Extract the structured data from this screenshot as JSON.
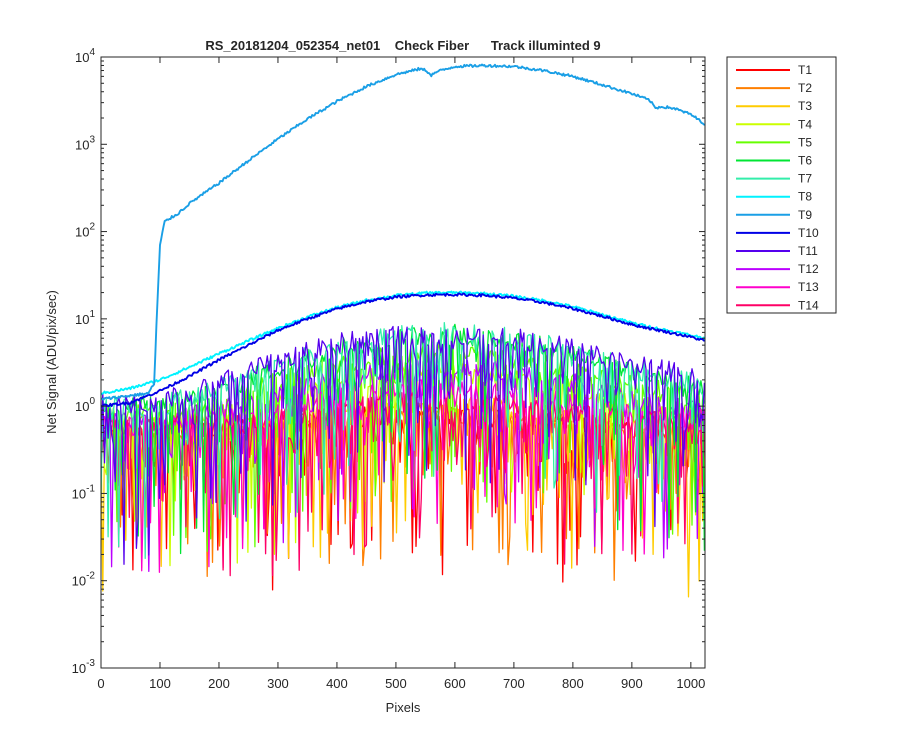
{
  "chart_data": {
    "type": "line",
    "title": "RS_20181204_052354_net01    Check Fiber      Track illuminted 9",
    "xlabel": "Pixels",
    "ylabel": "Net Signal (ADU/pix/sec)",
    "xlim": [
      0,
      1024
    ],
    "ylim": [
      0.001,
      10000
    ],
    "yscale": "log",
    "grid": false,
    "legend_position": "outside-top-right",
    "xticks": [
      0,
      100,
      200,
      300,
      400,
      500,
      600,
      700,
      800,
      900,
      1000
    ],
    "xtick_labels": [
      "0",
      "100",
      "200",
      "300",
      "400",
      "500",
      "600",
      "700",
      "800",
      "900",
      "1000"
    ],
    "yticks": [
      0.001,
      0.01,
      0.1,
      1,
      10,
      100,
      1000,
      10000
    ],
    "ytick_labels": [
      {
        "base": "10",
        "exp": "-3"
      },
      {
        "base": "10",
        "exp": "-2"
      },
      {
        "base": "10",
        "exp": "-1"
      },
      {
        "base": "10",
        "exp": "0"
      },
      {
        "base": "10",
        "exp": "1"
      },
      {
        "base": "10",
        "exp": "2"
      },
      {
        "base": "10",
        "exp": "3"
      },
      {
        "base": "10",
        "exp": "4"
      }
    ],
    "series": [
      {
        "name": "T1",
        "color": "#ff0000",
        "noisy": true,
        "x": [
          0,
          100,
          200,
          300,
          400,
          500,
          600,
          700,
          800,
          900,
          1024
        ],
        "y": [
          0.5,
          0.5,
          0.5,
          0.6,
          0.7,
          0.8,
          0.8,
          0.7,
          0.6,
          0.5,
          0.45
        ]
      },
      {
        "name": "T2",
        "color": "#ff7f00",
        "noisy": true,
        "x": [
          0,
          100,
          200,
          300,
          400,
          500,
          600,
          700,
          800,
          900,
          1024
        ],
        "y": [
          0.5,
          0.5,
          0.55,
          0.6,
          0.75,
          0.85,
          0.85,
          0.75,
          0.6,
          0.5,
          0.5
        ]
      },
      {
        "name": "T3",
        "color": "#ffcc00",
        "noisy": true,
        "x": [
          0,
          100,
          200,
          300,
          400,
          500,
          600,
          700,
          800,
          900,
          1024
        ],
        "y": [
          0.5,
          0.55,
          0.6,
          0.7,
          0.85,
          1.0,
          1.0,
          0.9,
          0.7,
          0.6,
          0.5
        ]
      },
      {
        "name": "T4",
        "color": "#ccff00",
        "noisy": true,
        "x": [
          0,
          100,
          200,
          300,
          400,
          500,
          600,
          700,
          800,
          900,
          1024
        ],
        "y": [
          0.6,
          0.6,
          0.8,
          1.2,
          1.8,
          2.3,
          2.4,
          2.1,
          1.6,
          1.1,
          0.8
        ]
      },
      {
        "name": "T5",
        "color": "#66ff00",
        "noisy": true,
        "x": [
          0,
          100,
          200,
          300,
          400,
          500,
          600,
          700,
          800,
          900,
          1024
        ],
        "y": [
          0.8,
          0.8,
          1.1,
          1.9,
          3.0,
          3.9,
          4.0,
          3.5,
          2.6,
          1.7,
          1.2
        ]
      },
      {
        "name": "T6",
        "color": "#00e633",
        "noisy": true,
        "x": [
          0,
          100,
          200,
          300,
          400,
          500,
          600,
          700,
          800,
          900,
          1024
        ],
        "y": [
          1.0,
          1.0,
          1.5,
          2.7,
          4.5,
          6.0,
          6.6,
          5.6,
          4.0,
          2.5,
          1.6
        ]
      },
      {
        "name": "T7",
        "color": "#33eeaa",
        "noisy": true,
        "x": [
          0,
          100,
          200,
          300,
          400,
          500,
          600,
          700,
          800,
          900,
          1024
        ],
        "y": [
          1.0,
          1.0,
          1.6,
          2.9,
          4.8,
          6.4,
          7.0,
          6.0,
          4.3,
          2.6,
          1.7
        ]
      },
      {
        "name": "T8",
        "color": "#00f2ff",
        "noisy": false,
        "x": [
          0,
          50,
          100,
          150,
          200,
          250,
          300,
          350,
          400,
          450,
          500,
          550,
          600,
          650,
          700,
          750,
          800,
          850,
          900,
          950,
          1000,
          1024
        ],
        "y": [
          1.4,
          1.6,
          2.0,
          2.8,
          4.0,
          5.6,
          7.8,
          10.5,
          13.5,
          16.3,
          18.5,
          19.8,
          20.0,
          19.5,
          18.2,
          16.2,
          13.8,
          11.2,
          9.0,
          7.6,
          6.5,
          6.0
        ]
      },
      {
        "name": "T9",
        "color": "#1a9fe6",
        "noisy": false,
        "x": [
          0,
          80,
          90,
          95,
          100,
          108,
          130,
          150,
          200,
          250,
          300,
          350,
          400,
          450,
          500,
          540,
          550,
          560,
          570,
          600,
          650,
          700,
          750,
          800,
          850,
          900,
          930,
          940,
          950,
          970,
          1000,
          1024
        ],
        "y": [
          1.2,
          1.4,
          1.8,
          12,
          70,
          130,
          160,
          210,
          360,
          650,
          1150,
          1950,
          3100,
          4600,
          6300,
          7300,
          7100,
          6200,
          6800,
          7800,
          8000,
          7800,
          7000,
          6000,
          4800,
          3800,
          3200,
          2600,
          2700,
          2600,
          2200,
          1700
        ]
      },
      {
        "name": "T10",
        "color": "#0000e6",
        "noisy": false,
        "x": [
          0,
          50,
          100,
          150,
          200,
          250,
          300,
          350,
          400,
          450,
          500,
          550,
          600,
          650,
          700,
          750,
          800,
          850,
          900,
          950,
          1000,
          1024
        ],
        "y": [
          1.0,
          1.1,
          1.5,
          2.2,
          3.4,
          5.0,
          7.4,
          10.0,
          13.0,
          15.8,
          17.8,
          18.8,
          19.0,
          18.6,
          17.3,
          15.4,
          13.1,
          10.7,
          8.6,
          7.3,
          6.2,
          5.6
        ]
      },
      {
        "name": "T11",
        "color": "#5500ee",
        "noisy": true,
        "x": [
          0,
          100,
          200,
          300,
          400,
          500,
          600,
          700,
          800,
          900,
          1024
        ],
        "y": [
          1.1,
          1.1,
          1.8,
          3.3,
          5.2,
          6.3,
          6.5,
          6.0,
          4.6,
          3.0,
          2.2
        ]
      },
      {
        "name": "T12",
        "color": "#bb00ff",
        "noisy": true,
        "x": [
          0,
          100,
          200,
          300,
          400,
          500,
          600,
          700,
          800,
          900,
          1024
        ],
        "y": [
          0.7,
          0.7,
          0.9,
          1.3,
          2.0,
          2.6,
          2.7,
          2.4,
          1.8,
          1.2,
          0.9
        ]
      },
      {
        "name": "T13",
        "color": "#ff00cc",
        "noisy": true,
        "x": [
          0,
          100,
          200,
          300,
          400,
          500,
          600,
          700,
          800,
          900,
          1024
        ],
        "y": [
          0.6,
          0.6,
          0.7,
          0.9,
          1.2,
          1.5,
          1.6,
          1.4,
          1.1,
          0.8,
          0.7
        ]
      },
      {
        "name": "T14",
        "color": "#ff0066",
        "noisy": true,
        "x": [
          0,
          100,
          200,
          300,
          400,
          500,
          600,
          700,
          800,
          900,
          1024
        ],
        "y": [
          0.6,
          0.6,
          0.6,
          0.7,
          0.9,
          1.1,
          1.1,
          1.0,
          0.8,
          0.7,
          0.6
        ]
      }
    ]
  }
}
